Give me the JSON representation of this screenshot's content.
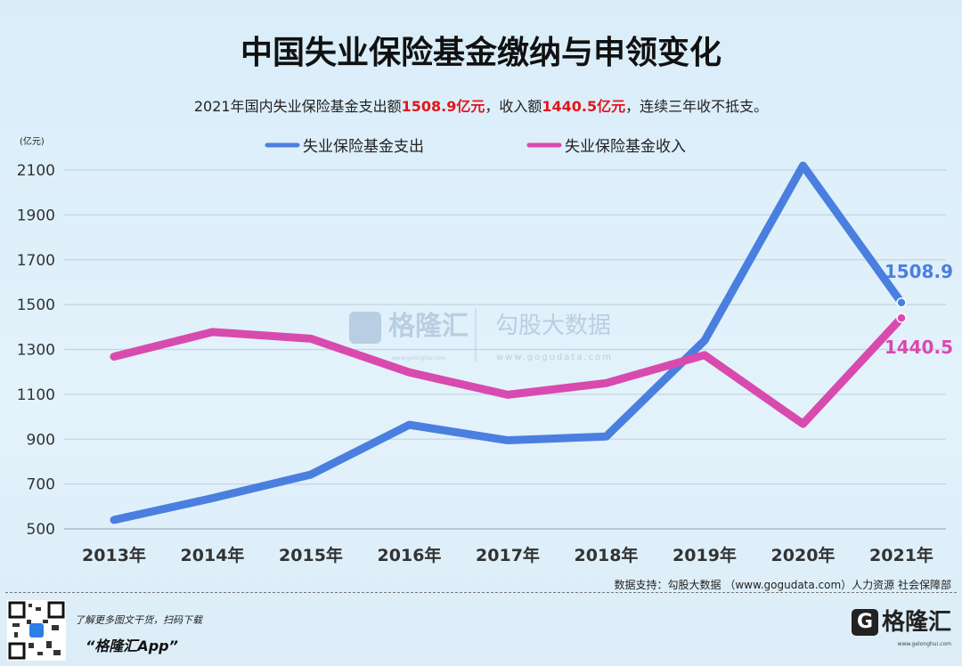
{
  "header": {
    "title": "中国失业保险基金缴纳与申领变化",
    "subtitle_parts": [
      "2021年国内失业保险基金支出额",
      "1508.9亿元",
      "，收入额",
      "1440.5亿元",
      "，连续三年收不抵支。"
    ]
  },
  "chart_data": {
    "type": "line",
    "title": "中国失业保险基金缴纳与申领变化",
    "ylabel": "(亿元)",
    "ylim": [
      500,
      2100
    ],
    "yticks": [
      500,
      700,
      900,
      1100,
      1300,
      1500,
      1700,
      1900,
      2100
    ],
    "grid": true,
    "legend_placement": "top",
    "categories": [
      "2013年",
      "2014年",
      "2015年",
      "2016年",
      "2017年",
      "2018年",
      "2019年",
      "2020年",
      "2021年"
    ],
    "series": [
      {
        "name": "失业保险基金支出",
        "color": "#4a7fe0",
        "values": [
          540,
          637,
          742,
          964,
          895,
          912,
          1340,
          2120,
          1508.9
        ],
        "end_label": "1508.9"
      },
      {
        "name": "失业保险基金收入",
        "color": "#d94aae",
        "values": [
          1268,
          1378,
          1348,
          1198,
          1098,
          1150,
          1275,
          968,
          1440.5
        ],
        "end_label": "1440.5"
      }
    ]
  },
  "watermark": {
    "brand": "格隆汇",
    "brand_url": "www.gelonghui.com",
    "data": "勾股大数据",
    "data_url": "www.gogudata.com"
  },
  "footer": {
    "source": "数据支持：勾股大数据 （www.gogudata.com）人力资源 社会保障部",
    "promo_line1": "了解更多图文干货，扫码下载",
    "promo_line2": "“格隆汇App”",
    "logo_text": "格隆汇",
    "logo_url": "www.gelonghui.com"
  }
}
